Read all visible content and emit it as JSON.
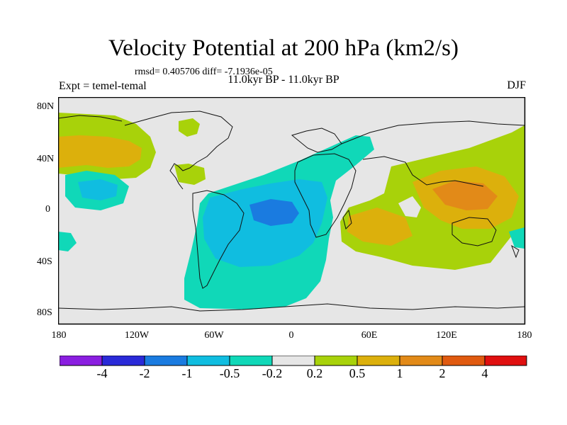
{
  "header": {
    "title": "Velocity Potential at 200 hPa (km2/s)",
    "stats": "rmsd= 0.405706 diff= -7.1936e-05",
    "experiment": "Expt = temel-temal",
    "period": "11.0kyr BP - 11.0kyr BP",
    "season": "DJF"
  },
  "axes": {
    "y_labels": [
      "80N",
      "40N",
      "0",
      "40S",
      "80S"
    ],
    "x_labels": [
      "180",
      "120W",
      "60W",
      "0",
      "60E",
      "120E",
      "180"
    ]
  },
  "colorbar": {
    "colors": [
      "#8a1ee0",
      "#2a2ad8",
      "#1a7be0",
      "#10bde0",
      "#10d8b8",
      "#e6e6e6",
      "#a8d20a",
      "#dcb00c",
      "#e28a18",
      "#e05a10",
      "#e01010"
    ],
    "labels": [
      "-4",
      "-2",
      "-1",
      "-0.5",
      "-0.2",
      "0.2",
      "0.5",
      "1",
      "2",
      "4"
    ]
  },
  "map_colors": {
    "background": "#e6e6e6",
    "pos1": "#a8d20a",
    "pos2": "#dcb00c",
    "pos3": "#e28a18",
    "neg1": "#10d8b8",
    "neg2": "#10bde0",
    "neg3": "#1a7be0"
  }
}
